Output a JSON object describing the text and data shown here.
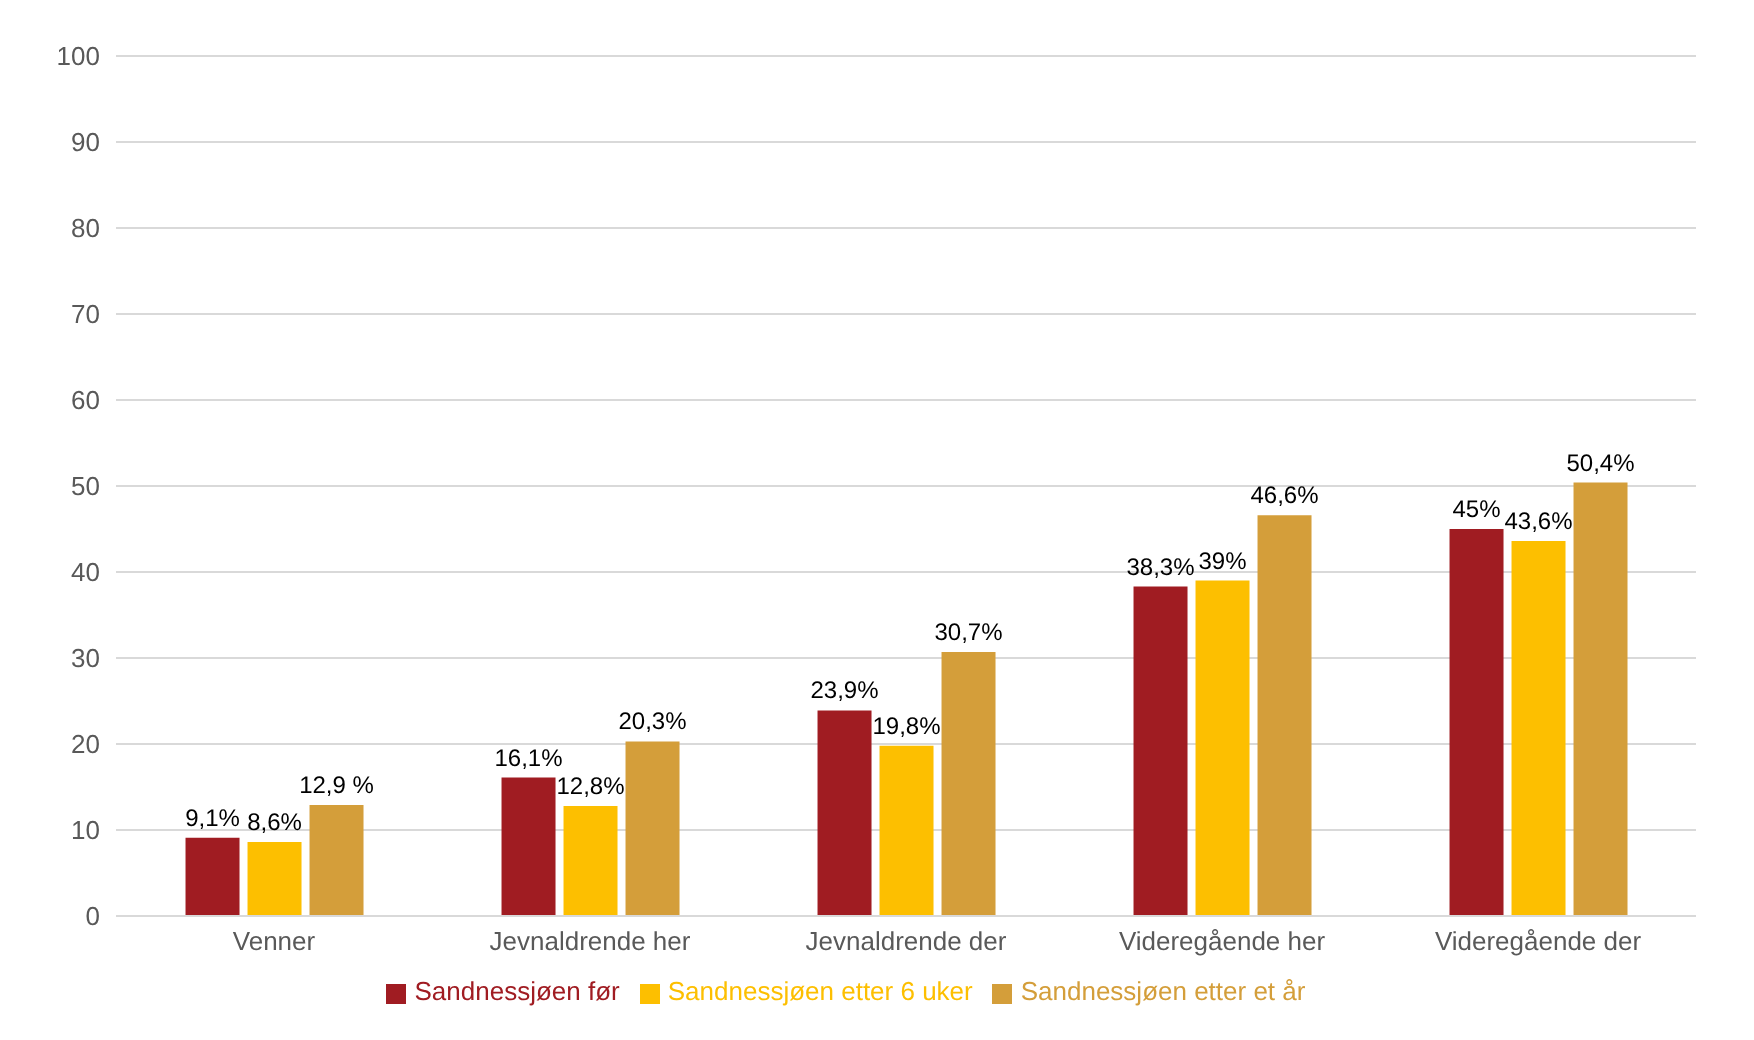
{
  "chart_data": {
    "type": "bar",
    "categories": [
      "Venner",
      "Jevnaldrende her",
      "Jevnaldrende der",
      "Videregående her",
      "Videregående der"
    ],
    "series": [
      {
        "name": "Sandnessjøen før",
        "color": "#a01c22",
        "values": [
          9.1,
          16.1,
          23.9,
          38.3,
          45
        ],
        "value_labels": [
          "9,1%",
          "16,1%",
          "23,9%",
          "38,3%",
          "45%"
        ]
      },
      {
        "name": "Sandnessjøen etter 6 uker",
        "color": "#fdbf00",
        "values": [
          8.6,
          12.8,
          19.8,
          39,
          43.6
        ],
        "value_labels": [
          "8,6%",
          "12,8%",
          "19,8%",
          "39%",
          "43,6%"
        ]
      },
      {
        "name": "Sandnessjøen etter et år",
        "color": "#d49e3a",
        "values": [
          12.9,
          20.3,
          30.7,
          46.6,
          50.4
        ],
        "value_labels": [
          "12,9 %",
          "20,3%",
          "30,7%",
          "46,6%",
          "50,4%"
        ]
      }
    ],
    "ylim": [
      0,
      100
    ],
    "yticks": [
      0,
      10,
      20,
      30,
      40,
      50,
      60,
      70,
      80,
      90,
      100
    ],
    "grid": "y",
    "legend": "bottom"
  }
}
